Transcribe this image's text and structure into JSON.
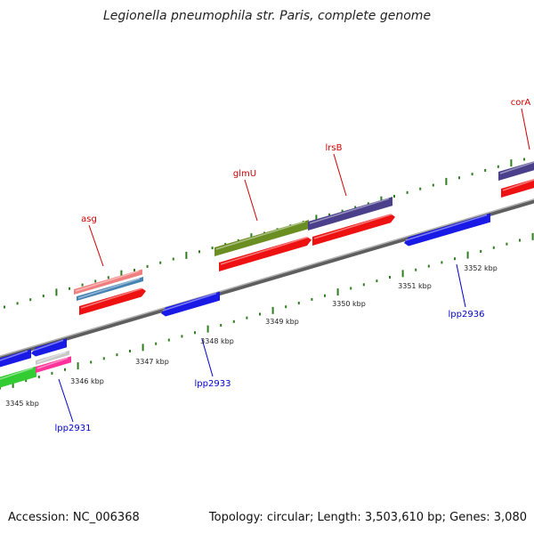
{
  "title": "Legionella pneumophila str. Paris, complete genome",
  "footer": {
    "accession": "Accession: NC_006368",
    "summary": "Topology: circular; Length: 3,503,610 bp; Genes: 3,080"
  },
  "scale": {
    "labels": [
      "3345 kbp",
      "3346 kbp",
      "3347 kbp",
      "3348 kbp",
      "3349 kbp",
      "3350 kbp",
      "3351 kbp",
      "3352 kbp"
    ]
  },
  "gene_labels": {
    "forward": [
      "asg",
      "glmU",
      "lrsB",
      "corA"
    ],
    "reverse": [
      "lpp2931",
      "lpp2933",
      "lpp2936"
    ]
  },
  "colors": {
    "backbone": "#8a8a8a",
    "tick": "#2e7d1f",
    "forward_label": "#cc0000",
    "reverse_label": "#0000cc",
    "red_feature": "#ee1111",
    "blue_feature": "#1a1ae6",
    "purple_feature": "#4a3f8a",
    "olive_feature": "#6b8e23",
    "green_feature": "#33cc33",
    "pink_feature": "#ff3399",
    "salmon_feature": "#f08080",
    "steel_feature": "#4682b4"
  }
}
